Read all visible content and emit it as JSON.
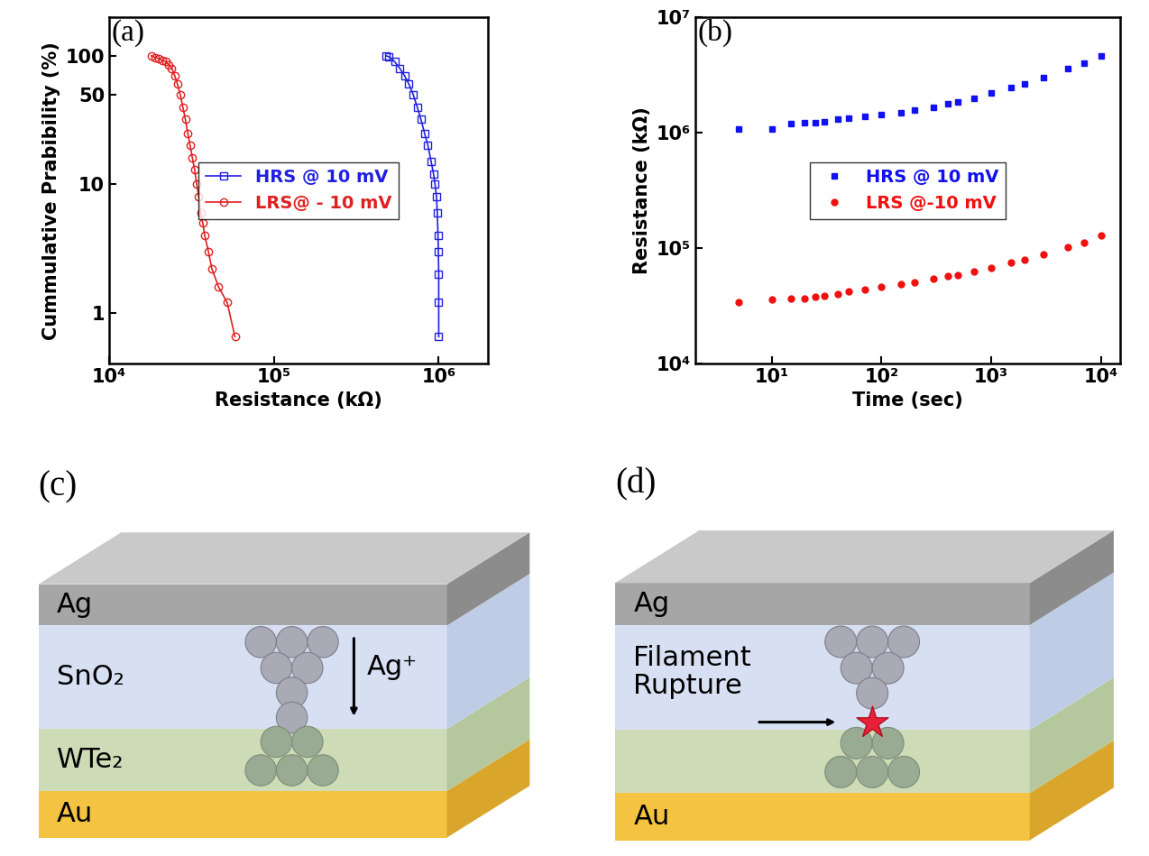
{
  "chart_data": [
    {
      "type": "line",
      "panel_label": "(a)",
      "x_label": "Resistance (kΩ)",
      "y_label": "Cummulative Prabibility (%)",
      "log": true,
      "legend": "center",
      "xlim": [
        10000,
        2000000
      ],
      "xticks": [
        {
          "value": 10000,
          "label": "10⁴"
        },
        {
          "value": 100000,
          "label": "10⁵"
        },
        {
          "value": 1000000,
          "label": "10⁶"
        }
      ],
      "ylim": [
        0.4,
        200
      ],
      "yticks": [
        1,
        10,
        50,
        100
      ],
      "series": [
        {
          "name": "HRS @ 10 mV",
          "color": "#2020e0",
          "marker": "square",
          "line_style": "solid",
          "x": [
            480000,
            500000,
            540000,
            580000,
            620000,
            660000,
            700000,
            740000,
            780000,
            820000,
            860000,
            900000,
            930000,
            950000,
            970000,
            980000,
            990000,
            995000,
            1000000,
            1000000,
            1000000
          ],
          "values": [
            100,
            98,
            90,
            80,
            70,
            60,
            50,
            40,
            32,
            25,
            20,
            15,
            12,
            10,
            8,
            6,
            4,
            3,
            2,
            1.2,
            0.65
          ]
        },
        {
          "name": "LRS@ - 10 mV",
          "color": "#e02020",
          "marker": "circle",
          "line_style": "solid",
          "x": [
            18000,
            19000,
            20000,
            21000,
            22000,
            23000,
            24000,
            25000,
            26000,
            27000,
            28000,
            29000,
            30000,
            31000,
            32000,
            33000,
            34000,
            35000,
            36000,
            37000,
            38000,
            40000,
            42000,
            46000,
            52000,
            58000
          ],
          "values": [
            100,
            97,
            95,
            92,
            90,
            85,
            80,
            70,
            60,
            50,
            40,
            32,
            25,
            20,
            16,
            13,
            10,
            8,
            6,
            5,
            4,
            3,
            2.2,
            1.6,
            1.2,
            0.65
          ]
        }
      ]
    },
    {
      "type": "scatter",
      "panel_label": "(b)",
      "x_label": "Time (sec)",
      "y_label": "Resistance (kΩ)",
      "log": true,
      "legend": "center",
      "xlim": [
        2,
        15000
      ],
      "xticks": [
        {
          "value": 10,
          "label": "10¹"
        },
        {
          "value": 100,
          "label": "10²"
        },
        {
          "value": 1000,
          "label": "10³"
        },
        {
          "value": 10000,
          "label": "10⁴"
        }
      ],
      "ylim": [
        10000,
        10000000
      ],
      "yticks": [
        {
          "value": 10000,
          "label": "10⁴"
        },
        {
          "value": 100000,
          "label": "10⁵"
        },
        {
          "value": 1000000,
          "label": "10⁶"
        },
        {
          "value": 10000000,
          "label": "10⁷"
        }
      ],
      "x": [
        5,
        10,
        15,
        20,
        25,
        30,
        40,
        50,
        70,
        100,
        150,
        200,
        300,
        400,
        500,
        700,
        1000,
        1500,
        2000,
        3000,
        5000,
        7000,
        10000
      ],
      "series": [
        {
          "name": "HRS @ 10 mV",
          "color": "#1010f0",
          "marker": "square",
          "values": [
            1080000,
            1080000,
            1200000,
            1220000,
            1230000,
            1250000,
            1300000,
            1330000,
            1380000,
            1430000,
            1500000,
            1560000,
            1650000,
            1780000,
            1850000,
            2000000,
            2200000,
            2450000,
            2650000,
            3000000,
            3600000,
            4000000,
            4600000
          ]
        },
        {
          "name": "LRS @-10 mV",
          "color": "#f01010",
          "marker": "circle",
          "values": [
            34000,
            36000,
            36500,
            37000,
            38000,
            39000,
            40500,
            42000,
            44000,
            46000,
            49000,
            51000,
            54000,
            57000,
            59000,
            63000,
            68000,
            75000,
            80000,
            89000,
            102000,
            112000,
            130000
          ]
        }
      ]
    }
  ],
  "diagrams": [
    {
      "label": "(c)",
      "layers": [
        {
          "name": "Ag"
        },
        {
          "name": "SnO₂"
        },
        {
          "name": "WTe₂"
        },
        {
          "name": "Au"
        }
      ],
      "annotation": "Ag⁺"
    },
    {
      "label": "(d)",
      "layers": [
        {
          "name": "Ag"
        },
        {
          "name": null
        },
        {
          "name": null
        },
        {
          "name": "Au"
        }
      ],
      "annotation": "Filament\nRupture"
    }
  ]
}
